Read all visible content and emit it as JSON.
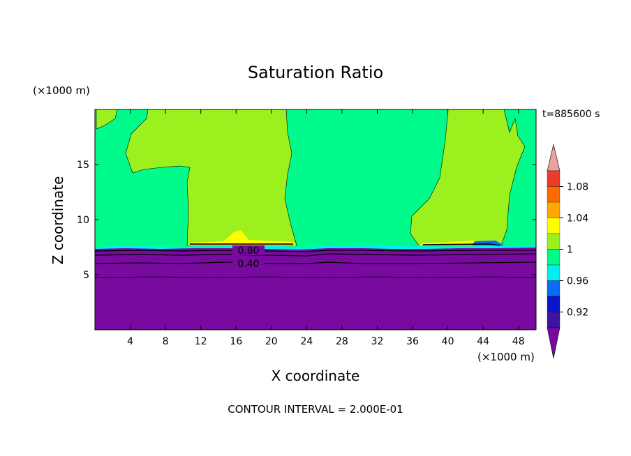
{
  "chart_data": {
    "type": "heatmap",
    "title": "Saturation Ratio",
    "xlabel": "X coordinate",
    "ylabel": "Z coordinate",
    "x_unit": "(×1000 m)",
    "y_unit": "(×1000 m)",
    "time_label": "t=885600 s",
    "footer": "CONTOUR INTERVAL = 2.000E-01",
    "xlim": [
      0,
      50
    ],
    "ylim": [
      0,
      20
    ],
    "x_ticks": [
      4,
      8,
      12,
      16,
      20,
      24,
      28,
      32,
      36,
      40,
      44,
      48
    ],
    "y_ticks": [
      5,
      10,
      15
    ],
    "contour_labels": [
      {
        "text": "0.80",
        "x": 17.2,
        "z": 7.1
      },
      {
        "text": "0.40",
        "x": 17.2,
        "z": 6.0
      }
    ],
    "colorbar": {
      "tick_labels": [
        "1.08",
        "1.04",
        "1",
        "0.96",
        "0.92"
      ],
      "bins": [
        {
          "lo": 1.1,
          "color": "#f0a0a0"
        },
        {
          "lo": 1.08,
          "color": "#ee3c28"
        },
        {
          "lo": 1.06,
          "color": "#ff6a00"
        },
        {
          "lo": 1.04,
          "color": "#ffa800"
        },
        {
          "lo": 1.02,
          "color": "#ffff00"
        },
        {
          "lo": 1.0,
          "color": "#9bf01e"
        },
        {
          "lo": 0.98,
          "color": "#00fa8c"
        },
        {
          "lo": 0.96,
          "color": "#00f0f0"
        },
        {
          "lo": 0.94,
          "color": "#0a6cf5"
        },
        {
          "lo": 0.92,
          "color": "#0a14c8"
        },
        {
          "lo": 0.9,
          "color": "#3c14a0"
        },
        {
          "lo": null,
          "color": "#780aa0"
        }
      ]
    },
    "regions": [
      {
        "name": "upper-background",
        "level": "0.98-1.00",
        "color": "#00fa8c"
      },
      {
        "name": "plume-left",
        "level": "1.00-1.02",
        "color": "#9bf01e"
      },
      {
        "name": "plume-right",
        "level": "1.00-1.02",
        "color": "#9bf01e"
      },
      {
        "name": "lower-layer",
        "level": "<0.90",
        "color": "#780aa0"
      }
    ]
  }
}
